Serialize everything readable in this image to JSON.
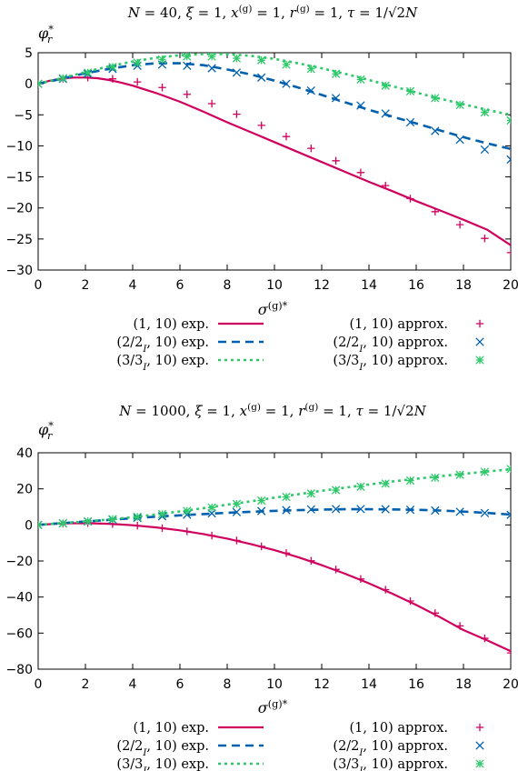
{
  "chart_data": [
    {
      "type": "line",
      "title": "N = 40, ξ = 1, x^(g) = 1, r^(g) = 1, τ = 1/√2N",
      "ylabel": "φ*_r",
      "xlabel": "σ^(g)*",
      "xlim": [
        0,
        20
      ],
      "ylim": [
        -30,
        5
      ],
      "xticks": [
        0,
        2,
        4,
        6,
        8,
        10,
        12,
        14,
        16,
        18,
        20
      ],
      "yticks": [
        -30,
        -25,
        -20,
        -15,
        -10,
        -5,
        0,
        5
      ],
      "grid": false,
      "legend_position": "bottom",
      "series": [
        {
          "name": "(1, 10) exp.",
          "style": "solid",
          "color": "#d0005e",
          "x": [
            0,
            0.5,
            1,
            1.5,
            2,
            2.5,
            3,
            3.5,
            4,
            4.5,
            5,
            6,
            7,
            8,
            9,
            10,
            11,
            12,
            13,
            14,
            15,
            16,
            17,
            18,
            19,
            20
          ],
          "y": [
            0,
            0.5,
            0.85,
            1.0,
            1.0,
            0.9,
            0.6,
            0.2,
            -0.3,
            -0.9,
            -1.5,
            -2.9,
            -4.5,
            -6.2,
            -7.8,
            -9.4,
            -11.0,
            -12.6,
            -14.2,
            -15.8,
            -17.3,
            -18.9,
            -20.4,
            -21.9,
            -23.5,
            -26.0
          ]
        },
        {
          "name": "(2/2_I, 10) exp.",
          "style": "dashed",
          "color": "#0060ad",
          "x": [
            0,
            1,
            2,
            3,
            4,
            5,
            6,
            7,
            8,
            9,
            10,
            11,
            12,
            13,
            14,
            15,
            16,
            17,
            18,
            19,
            20
          ],
          "y": [
            0,
            0.8,
            1.7,
            2.4,
            3.0,
            3.3,
            3.3,
            3.0,
            2.3,
            1.5,
            0.5,
            -0.6,
            -1.8,
            -3.0,
            -4.2,
            -5.3,
            -6.4,
            -7.5,
            -8.6,
            -9.6,
            -10.5
          ]
        },
        {
          "name": "(3/3_I, 10) exp.",
          "style": "dotted",
          "color": "#2ec86a",
          "x": [
            0,
            1,
            2,
            3,
            4,
            5,
            6,
            7,
            8,
            9,
            10,
            11,
            12,
            13,
            14,
            15,
            16,
            17,
            18,
            19,
            20
          ],
          "y": [
            0,
            0.9,
            1.9,
            2.8,
            3.6,
            4.2,
            4.6,
            4.8,
            4.8,
            4.5,
            4.0,
            3.3,
            2.5,
            1.6,
            0.6,
            -0.4,
            -1.4,
            -2.4,
            -3.3,
            -4.2,
            -5.0
          ]
        },
        {
          "name": "(1, 10) approx.",
          "marker": "+",
          "color": "#d0005e",
          "x": [
            0,
            1.05,
            2.1,
            3.15,
            4.2,
            5.25,
            6.3,
            7.35,
            8.4,
            9.45,
            10.5,
            11.55,
            12.6,
            13.65,
            14.7,
            15.75,
            16.8,
            17.85,
            18.9,
            20
          ],
          "y": [
            0,
            0.8,
            1.0,
            0.8,
            0.3,
            -0.6,
            -1.7,
            -3.2,
            -4.9,
            -6.7,
            -8.5,
            -10.4,
            -12.4,
            -14.3,
            -16.4,
            -18.5,
            -20.6,
            -22.7,
            -24.9,
            -27.2
          ]
        },
        {
          "name": "(2/2_I, 10) approx.",
          "marker": "×",
          "color": "#0060ad",
          "x": [
            0,
            1.05,
            2.1,
            3.15,
            4.2,
            5.25,
            6.3,
            7.35,
            8.4,
            9.45,
            10.5,
            11.55,
            12.6,
            13.65,
            14.7,
            15.75,
            16.8,
            17.85,
            18.9,
            20
          ],
          "y": [
            0,
            0.8,
            1.6,
            2.4,
            2.9,
            3.1,
            2.9,
            2.5,
            1.8,
            1.0,
            0.0,
            -1.1,
            -2.3,
            -3.5,
            -4.8,
            -6.2,
            -7.6,
            -9.0,
            -10.6,
            -12.2
          ]
        },
        {
          "name": "(3/3_I, 10) approx.",
          "marker": "✳",
          "color": "#2ec86a",
          "x": [
            0,
            1.05,
            2.1,
            3.15,
            4.2,
            5.25,
            6.3,
            7.35,
            8.4,
            9.45,
            10.5,
            11.55,
            12.6,
            13.65,
            14.7,
            15.75,
            16.8,
            17.85,
            18.9,
            20
          ],
          "y": [
            0,
            0.9,
            1.8,
            2.7,
            3.4,
            3.9,
            4.4,
            4.4,
            4.1,
            3.8,
            3.1,
            2.4,
            1.6,
            0.7,
            -0.3,
            -1.2,
            -2.3,
            -3.4,
            -4.6,
            -5.9
          ]
        }
      ]
    },
    {
      "type": "line",
      "title": "N = 1000, ξ = 1, x^(g) = 1, r^(g) = 1, τ = 1/√2N",
      "ylabel": "φ*_r",
      "xlabel": "σ^(g)*",
      "xlim": [
        0,
        20
      ],
      "ylim": [
        -80,
        40
      ],
      "xticks": [
        0,
        2,
        4,
        6,
        8,
        10,
        12,
        14,
        16,
        18,
        20
      ],
      "yticks": [
        -80,
        -60,
        -40,
        -20,
        0,
        20,
        40
      ],
      "grid": false,
      "legend_position": "bottom",
      "series": [
        {
          "name": "(1, 10) exp.",
          "style": "solid",
          "color": "#d0005e",
          "x": [
            0,
            1,
            2,
            3,
            4,
            5,
            6,
            7,
            8,
            9,
            10,
            11,
            12,
            13,
            14,
            15,
            16,
            17,
            18,
            19,
            20
          ],
          "y": [
            0,
            0.8,
            1.0,
            0.6,
            -0.2,
            -1.4,
            -3.0,
            -5.1,
            -7.6,
            -10.6,
            -14.0,
            -17.9,
            -22.3,
            -27.1,
            -32.4,
            -38.2,
            -44.4,
            -51.1,
            -58.3,
            -64.0,
            -70.0
          ]
        },
        {
          "name": "(2/2_I, 10) exp.",
          "style": "dashed",
          "color": "#0060ad",
          "x": [
            0,
            1,
            2,
            3,
            4,
            5,
            6,
            7,
            8,
            9,
            10,
            11,
            12,
            13,
            14,
            15,
            16,
            17,
            18,
            19,
            20
          ],
          "y": [
            0,
            1.0,
            1.9,
            2.8,
            3.7,
            4.6,
            5.3,
            6.0,
            6.7,
            7.3,
            7.8,
            8.2,
            8.5,
            8.7,
            8.7,
            8.6,
            8.4,
            8.0,
            7.4,
            6.6,
            5.7
          ]
        },
        {
          "name": "(3/3_I, 10) exp.",
          "style": "dotted",
          "color": "#2ec86a",
          "x": [
            0,
            1,
            2,
            3,
            4,
            5,
            6,
            7,
            8,
            9,
            10,
            11,
            12,
            13,
            14,
            15,
            16,
            17,
            18,
            19,
            20
          ],
          "y": [
            0,
            0.9,
            1.9,
            3.0,
            4.3,
            5.8,
            7.5,
            9.3,
            11.2,
            13.1,
            15.1,
            17.0,
            18.9,
            20.7,
            22.4,
            24.1,
            25.6,
            27.0,
            28.3,
            29.6,
            30.8
          ]
        },
        {
          "name": "(1, 10) approx.",
          "marker": "+",
          "color": "#d0005e",
          "x": [
            0,
            1.05,
            2.1,
            3.15,
            4.2,
            5.25,
            6.3,
            7.35,
            8.4,
            9.45,
            10.5,
            11.55,
            12.6,
            13.65,
            14.7,
            15.75,
            16.8,
            17.85,
            18.9,
            20
          ],
          "y": [
            0,
            0.7,
            1.0,
            0.5,
            -0.4,
            -1.8,
            -3.6,
            -5.9,
            -8.6,
            -11.9,
            -15.6,
            -19.9,
            -24.7,
            -30.0,
            -35.9,
            -42.2,
            -48.9,
            -56.0,
            -62.9,
            -71.0
          ]
        },
        {
          "name": "(2/2_I, 10) approx.",
          "marker": "×",
          "color": "#0060ad",
          "x": [
            0,
            1.05,
            2.1,
            3.15,
            4.2,
            5.25,
            6.3,
            7.35,
            8.4,
            9.45,
            10.5,
            11.55,
            12.6,
            13.65,
            14.7,
            15.75,
            16.8,
            17.85,
            18.9,
            20
          ],
          "y": [
            0,
            0.9,
            1.9,
            2.9,
            3.9,
            4.8,
            5.7,
            6.4,
            7.1,
            7.7,
            8.2,
            8.6,
            8.8,
            8.8,
            8.7,
            8.4,
            8.0,
            7.3,
            6.6,
            5.6
          ]
        },
        {
          "name": "(3/3_I, 10) approx.",
          "marker": "✳",
          "color": "#2ec86a",
          "x": [
            0,
            1.05,
            2.1,
            3.15,
            4.2,
            5.25,
            6.3,
            7.35,
            8.4,
            9.45,
            10.5,
            11.55,
            12.6,
            13.65,
            14.7,
            15.75,
            16.8,
            17.85,
            18.9,
            20
          ],
          "y": [
            0,
            0.9,
            2.0,
            3.2,
            4.5,
            6.0,
            7.8,
            9.6,
            11.6,
            13.5,
            15.5,
            17.4,
            19.3,
            21.2,
            22.9,
            24.6,
            26.2,
            27.8,
            29.4,
            31.0
          ]
        }
      ]
    }
  ]
}
